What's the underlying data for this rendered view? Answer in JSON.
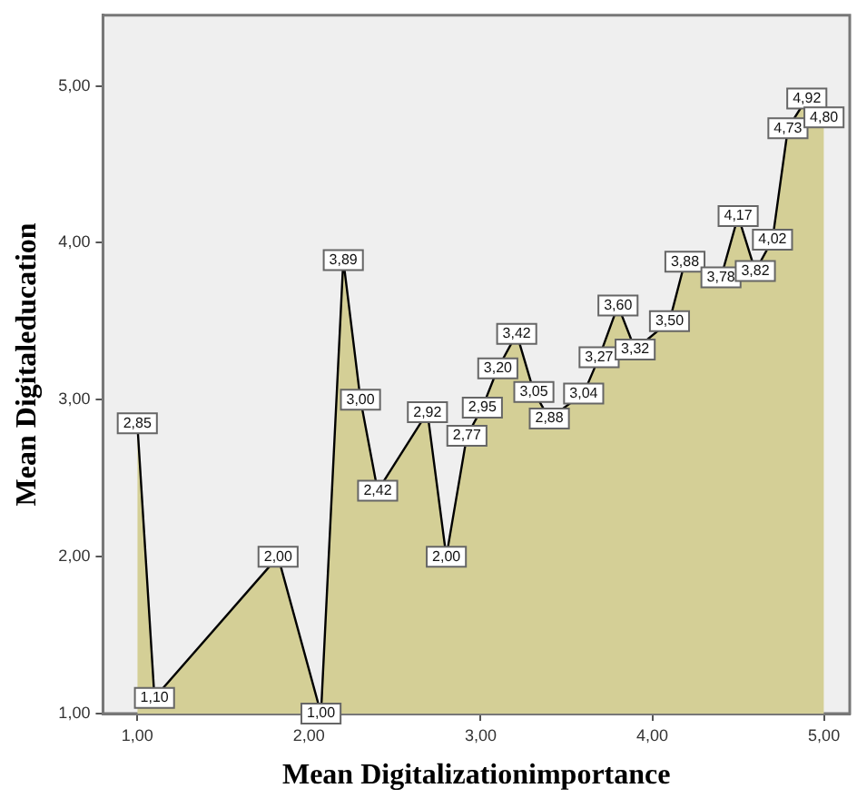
{
  "chart_data": {
    "type": "area",
    "xlabel": "Mean Digitalizationimportance",
    "ylabel": "Mean Digitaleducation",
    "x": [
      1.0,
      1.1,
      1.82,
      2.07,
      2.2,
      2.3,
      2.4,
      2.69,
      2.8,
      2.92,
      3.01,
      3.1,
      3.21,
      3.31,
      3.4,
      3.6,
      3.69,
      3.8,
      3.9,
      4.1,
      4.19,
      4.4,
      4.5,
      4.6,
      4.7,
      4.79,
      4.9,
      5.0
    ],
    "values": [
      2.85,
      1.1,
      2.0,
      1.0,
      3.89,
      3.0,
      2.42,
      2.92,
      2.0,
      2.77,
      2.95,
      3.2,
      3.42,
      3.05,
      2.88,
      3.04,
      3.27,
      3.6,
      3.32,
      3.5,
      3.88,
      3.78,
      4.17,
      3.82,
      4.02,
      4.73,
      4.92,
      4.8
    ],
    "value_labels": [
      "2,85",
      "1,10",
      "2,00",
      "1,00",
      "3,89",
      "3,00",
      "2,42",
      "2,92",
      "2,00",
      "2,77",
      "2,95",
      "3,20",
      "3,42",
      "3,05",
      "2,88",
      "3,04",
      "3,27",
      "3,60",
      "3,32",
      "3,50",
      "3,88",
      "3,78",
      "4,17",
      "3,82",
      "4,02",
      "4,73",
      "4,92",
      "4,80"
    ],
    "color": "#d4cf96",
    "xlim": [
      0.8,
      5.15
    ],
    "xticks": [
      {
        "value": 1,
        "label": "1,00"
      },
      {
        "value": 2,
        "label": "2,00"
      },
      {
        "value": 3,
        "label": "3,00"
      },
      {
        "value": 4,
        "label": "4,00"
      },
      {
        "value": 5,
        "label": "5,00"
      }
    ],
    "ylim": [
      1,
      5.45
    ],
    "yticks": [
      {
        "value": 1,
        "label": "1,00"
      },
      {
        "value": 2,
        "label": "2,00"
      },
      {
        "value": 3,
        "label": "3,00"
      },
      {
        "value": 4,
        "label": "4,00"
      },
      {
        "value": 5,
        "label": "5,00"
      }
    ],
    "grid": false,
    "legend": false,
    "line_style": "solid"
  }
}
